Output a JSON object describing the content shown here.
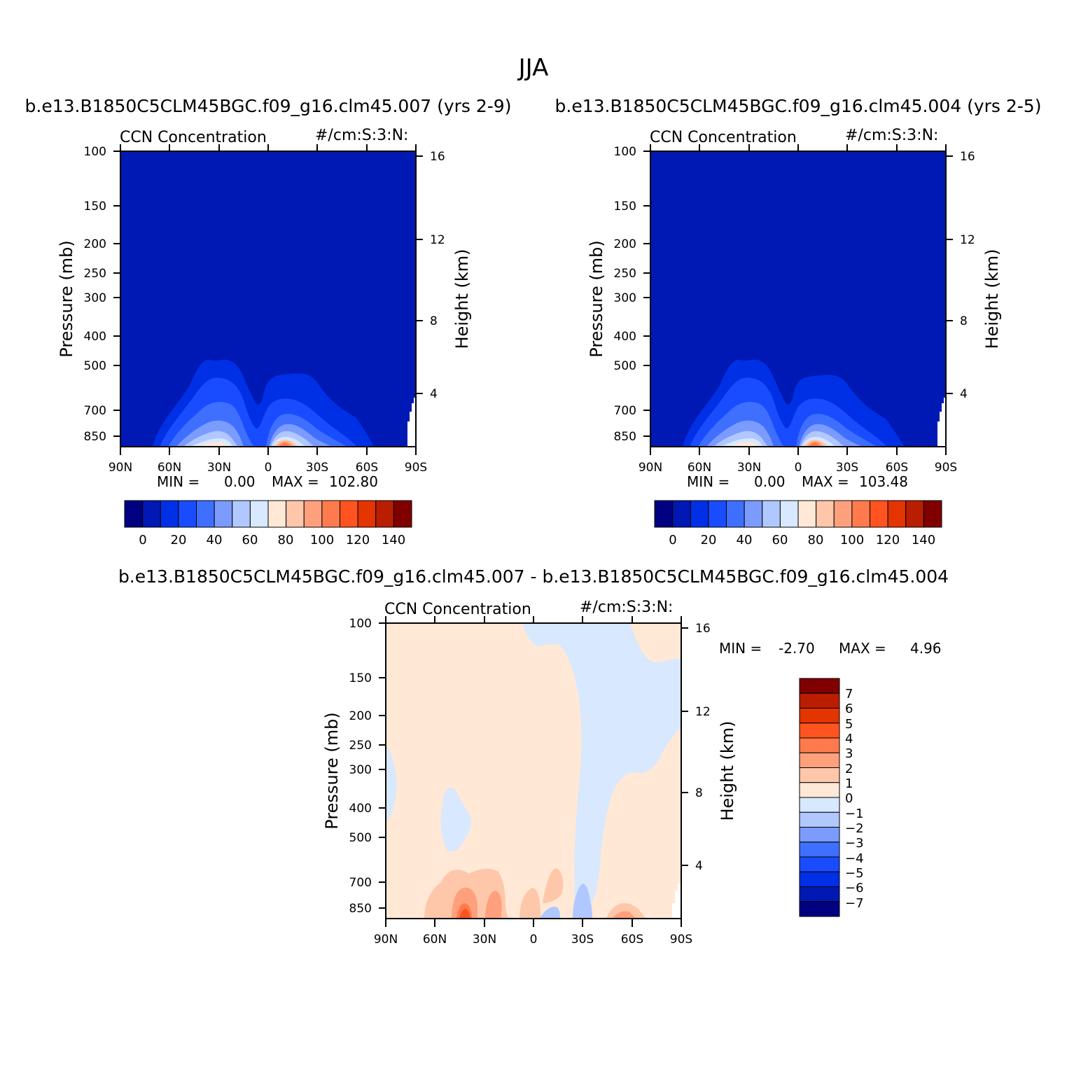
{
  "figure": {
    "title": "JJA"
  },
  "chart_data": [
    {
      "id": "panel1",
      "type": "heatmap",
      "header": "b.e13.B1850C5CLM45BGC.f09_g16.clm45.007 (yrs 2-9)",
      "variable": "CCN Concentration",
      "units": "#/cm:S:3:N:",
      "ylabel": "Pressure (mb)",
      "ylabel_right": "Height (km)",
      "x_ticks": [
        "90N",
        "60N",
        "30N",
        "0",
        "30S",
        "60S",
        "90S"
      ],
      "y_ticks": [
        "100",
        "150",
        "200",
        "250",
        "300",
        "400",
        "500",
        "700",
        "850"
      ],
      "y_ticks_right": [
        "16",
        "12",
        "8",
        "4"
      ],
      "xlim": [
        90,
        -90
      ],
      "ylim": [
        100,
        1000
      ],
      "yscale": "log",
      "min_label": "MIN =",
      "min_value": "0.00",
      "max_label": "MAX =",
      "max_value": "102.80",
      "colorbar_ticks": [
        "0",
        "20",
        "40",
        "60",
        "80",
        "100",
        "120",
        "140"
      ],
      "colors": [
        "#000080",
        "#0019b4",
        "#0030e6",
        "#1a4cff",
        "#3f6fff",
        "#7b9bff",
        "#b0c8ff",
        "#d7e8ff",
        "#ffe8d6",
        "#ffc7aa",
        "#ffa07c",
        "#ff7b4d",
        "#ff5420",
        "#e43400",
        "#b91e00",
        "#800000"
      ]
    },
    {
      "id": "panel2",
      "type": "heatmap",
      "header": "b.e13.B1850C5CLM45BGC.f09_g16.clm45.004 (yrs 2-5)",
      "variable": "CCN Concentration",
      "units": "#/cm:S:3:N:",
      "ylabel": "Pressure (mb)",
      "ylabel_right": "Height (km)",
      "x_ticks": [
        "90N",
        "60N",
        "30N",
        "0",
        "30S",
        "60S",
        "90S"
      ],
      "y_ticks": [
        "100",
        "150",
        "200",
        "250",
        "300",
        "400",
        "500",
        "700",
        "850"
      ],
      "y_ticks_right": [
        "16",
        "12",
        "8",
        "4"
      ],
      "xlim": [
        90,
        -90
      ],
      "ylim": [
        100,
        1000
      ],
      "yscale": "log",
      "min_label": "MIN =",
      "min_value": "0.00",
      "max_label": "MAX =",
      "max_value": "103.48",
      "colorbar_ticks": [
        "0",
        "20",
        "40",
        "60",
        "80",
        "100",
        "120",
        "140"
      ],
      "colors": [
        "#000080",
        "#0019b4",
        "#0030e6",
        "#1a4cff",
        "#3f6fff",
        "#7b9bff",
        "#b0c8ff",
        "#d7e8ff",
        "#ffe8d6",
        "#ffc7aa",
        "#ffa07c",
        "#ff7b4d",
        "#ff5420",
        "#e43400",
        "#b91e00",
        "#800000"
      ]
    },
    {
      "id": "panel3",
      "type": "heatmap",
      "header": "b.e13.B1850C5CLM45BGC.f09_g16.clm45.007 - b.e13.B1850C5CLM45BGC.f09_g16.clm45.004",
      "variable": "CCN Concentration",
      "units": "#/cm:S:3:N:",
      "ylabel": "Pressure (mb)",
      "ylabel_right": "Height (km)",
      "x_ticks": [
        "90N",
        "60N",
        "30N",
        "0",
        "30S",
        "60S",
        "90S"
      ],
      "y_ticks": [
        "100",
        "150",
        "200",
        "250",
        "300",
        "400",
        "500",
        "700",
        "850"
      ],
      "y_ticks_right": [
        "16",
        "12",
        "8",
        "4"
      ],
      "xlim": [
        90,
        -90
      ],
      "ylim": [
        100,
        1000
      ],
      "yscale": "log",
      "min_label": "MIN =",
      "min_value": "-2.70",
      "max_label": "MAX =",
      "max_value": "4.96",
      "colorbar_ticks": [
        "7",
        "6",
        "5",
        "4",
        "3",
        "2",
        "1",
        "0",
        "−1",
        "−2",
        "−3",
        "−4",
        "−5",
        "−6",
        "−7"
      ],
      "colors": [
        "#800000",
        "#b91e00",
        "#e43400",
        "#ff5420",
        "#ff7b4d",
        "#ffa07c",
        "#ffc7aa",
        "#ffe8d6",
        "#d7e8ff",
        "#b0c8ff",
        "#7b9bff",
        "#3f6fff",
        "#1a4cff",
        "#0030e6",
        "#0019b4",
        "#000080"
      ]
    }
  ]
}
